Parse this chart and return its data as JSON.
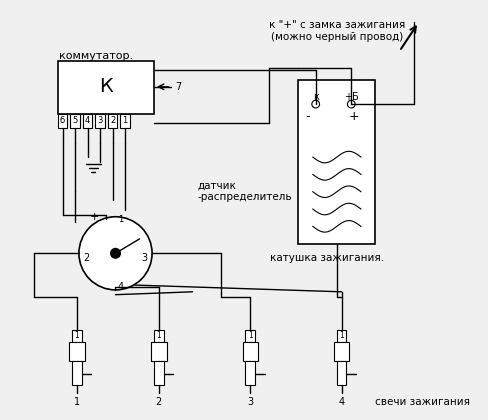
{
  "bg_color": "#f0f0f0",
  "line_color": "#000000",
  "title_top_line1": "к \"+\" с замка зажигания",
  "title_top_line2": "(можно черный провод)",
  "label_kommutator": "коммутатор.",
  "label_K": "К",
  "label_7": "7",
  "label_pins": [
    "б",
    "5",
    "4",
    "3",
    "2",
    "1"
  ],
  "label_datchik": "датчик",
  "label_raspredelitel": "-распределитель",
  "label_katushka": "катушка зажигания.",
  "label_sveci": "свечи зажигания",
  "spark_numbers": [
    "1",
    "2",
    "3",
    "4"
  ],
  "spark_labels": [
    "1",
    "1",
    "1",
    "1"
  ]
}
